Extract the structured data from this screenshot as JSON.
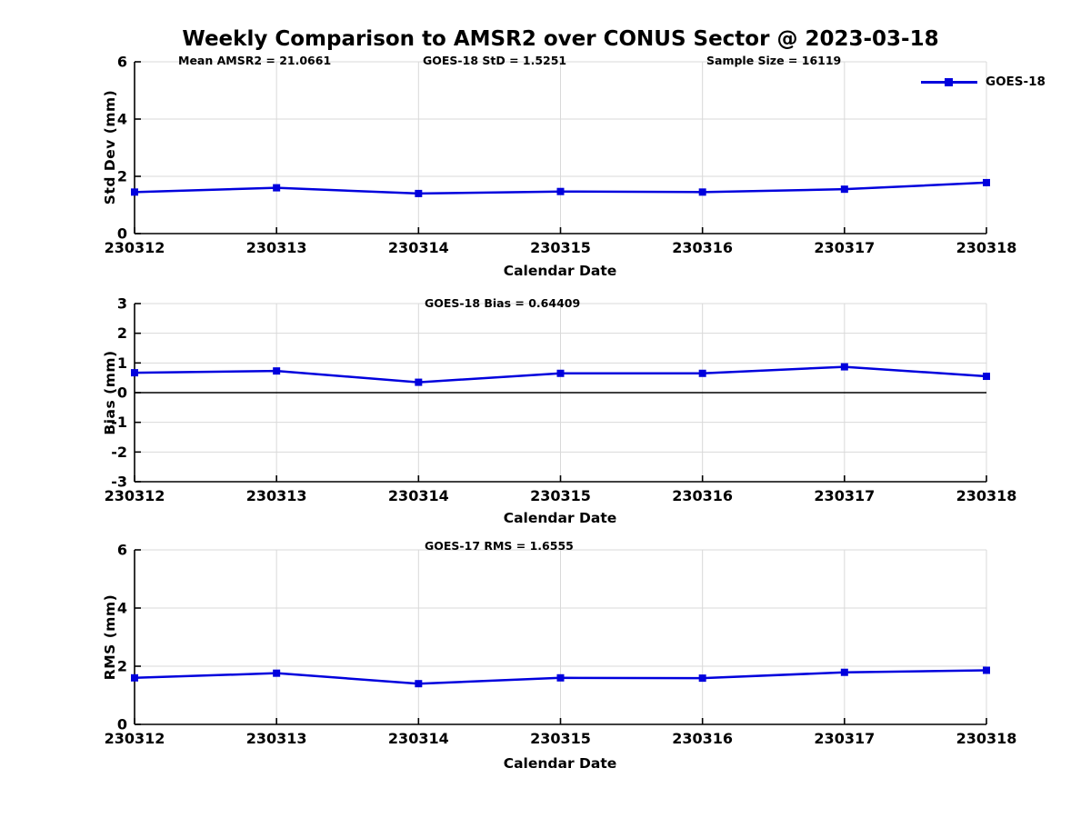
{
  "figure": {
    "title": "Weekly Comparison to AMSR2 over CONUS Sector @ 2023-03-18",
    "background": "#ffffff"
  },
  "annotations": {
    "mean_amsr2": "Mean AMSR2 = 21.0661",
    "goes18_std": "GOES-18 StD = 1.5251",
    "sample_size": "Sample Size = 16119",
    "goes18_bias": "GOES-18 Bias  = 0.64409",
    "goes17_rms": "GOES-17 RMS = 1.6555"
  },
  "legend": {
    "label": "GOES-18",
    "marker": "filled-square",
    "position": "top-right-outside"
  },
  "colors": {
    "line": "#0000dd",
    "grid": "#d9d9d9",
    "axis": "#000000",
    "zero_line": "#000000",
    "text": "#000000"
  },
  "chart_data": [
    {
      "type": "line",
      "panel": "std-dev",
      "title": "",
      "categories": [
        "230312",
        "230313",
        "230314",
        "230315",
        "230316",
        "230317",
        "230318"
      ],
      "series": [
        {
          "name": "GOES-18",
          "values": [
            1.45,
            1.6,
            1.4,
            1.47,
            1.45,
            1.55,
            1.78
          ]
        }
      ],
      "xlabel": "Calendar Date",
      "ylabel": "Std Dev (mm)",
      "ylim": [
        0,
        6
      ],
      "yticks": [
        0,
        2,
        4,
        6
      ],
      "grid": true,
      "zero_line": false
    },
    {
      "type": "line",
      "panel": "bias",
      "title": "",
      "categories": [
        "230312",
        "230313",
        "230314",
        "230315",
        "230316",
        "230317",
        "230318"
      ],
      "series": [
        {
          "name": "GOES-18",
          "values": [
            0.67,
            0.73,
            0.35,
            0.65,
            0.65,
            0.87,
            0.55
          ]
        }
      ],
      "xlabel": "Calendar Date",
      "ylabel": "Bias (mm)",
      "ylim": [
        -3,
        3
      ],
      "yticks": [
        -3,
        -2,
        -1,
        0,
        1,
        2,
        3
      ],
      "grid": true,
      "zero_line": true
    },
    {
      "type": "line",
      "panel": "rms",
      "title": "",
      "categories": [
        "230312",
        "230313",
        "230314",
        "230315",
        "230316",
        "230317",
        "230318"
      ],
      "series": [
        {
          "name": "GOES-18",
          "values": [
            1.6,
            1.76,
            1.4,
            1.6,
            1.59,
            1.79,
            1.86
          ]
        }
      ],
      "xlabel": "Calendar Date",
      "ylabel": "RMS (mm)",
      "ylim": [
        0,
        6
      ],
      "yticks": [
        0,
        2,
        4,
        6
      ],
      "grid": true,
      "zero_line": false
    }
  ]
}
